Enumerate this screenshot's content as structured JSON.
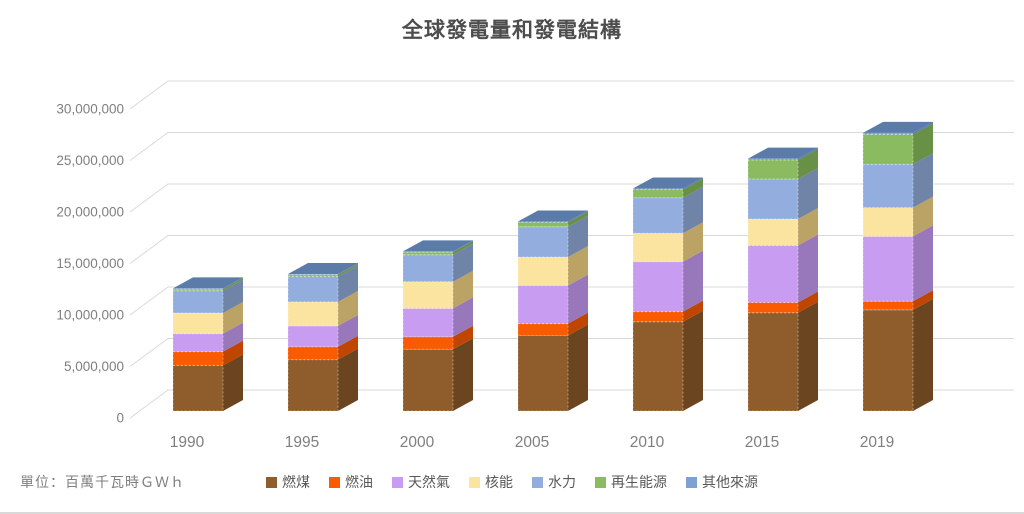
{
  "page": {
    "title": "全球發電量和發電結構",
    "unit_label": "單位：百萬千瓦時ＧＷｈ"
  },
  "chart_data": {
    "type": "bar",
    "subtype": "3d-stacked-column",
    "title": "全球發電量和發電結構",
    "unit": "百萬千瓦時GWh",
    "categories": [
      "1990",
      "1995",
      "2000",
      "2005",
      "2010",
      "2015",
      "2019"
    ],
    "series": [
      {
        "name": "燃煤",
        "color": "#8F5C2B",
        "side_color": "#6B451F",
        "values": [
          4430000,
          4990000,
          6000000,
          7330000,
          8670000,
          9540000,
          9820000
        ]
      },
      {
        "name": "燃油",
        "color": "#FA5A00",
        "side_color": "#C04500",
        "values": [
          1330000,
          1250000,
          1210000,
          1150000,
          980000,
          990000,
          830000
        ]
      },
      {
        "name": "天然氣",
        "color": "#C89DF1",
        "side_color": "#9878BB",
        "values": [
          1750000,
          2020000,
          2750000,
          3700000,
          4850000,
          5540000,
          6300000
        ]
      },
      {
        "name": "核能",
        "color": "#FBE3A0",
        "side_color": "#BBA265",
        "values": [
          2010000,
          2330000,
          2590000,
          2770000,
          2760000,
          2570000,
          2790000
        ]
      },
      {
        "name": "水力",
        "color": "#93AEDE",
        "side_color": "#6F84A6",
        "values": [
          2160000,
          2460000,
          2620000,
          2940000,
          3440000,
          3890000,
          4220000
        ]
      },
      {
        "name": "再生能源",
        "color": "#8ABB60",
        "side_color": "#689147",
        "values": [
          160000,
          180000,
          250000,
          420000,
          790000,
          1840000,
          2890000
        ]
      },
      {
        "name": "其他來源",
        "color": "#7FA0D2",
        "side_color": "#5B7CA8",
        "values": [
          60000,
          70000,
          80000,
          90000,
          110000,
          130000,
          150000
        ]
      }
    ],
    "totals": [
      11900000,
      13300000,
      15500000,
      18400000,
      21600000,
      24500000,
      27000000
    ],
    "y_axis": {
      "min": 0,
      "max": 30000000,
      "step": 5000000,
      "tick_labels": [
        "0",
        "5,000,000",
        "10,000,000",
        "15,000,000",
        "20,000,000",
        "25,000,000",
        "30,000,000"
      ]
    },
    "x_axis": {
      "tick_labels": [
        "1990",
        "1995",
        "2000",
        "2005",
        "2010",
        "2015",
        "2019"
      ]
    },
    "legend_position": "bottom",
    "grid": true,
    "colors": {
      "grid_line": "#d9d9d9",
      "axis_text": "#7f7f7f",
      "title_text": "#4d4d4d",
      "legend_text": "#595959"
    }
  }
}
